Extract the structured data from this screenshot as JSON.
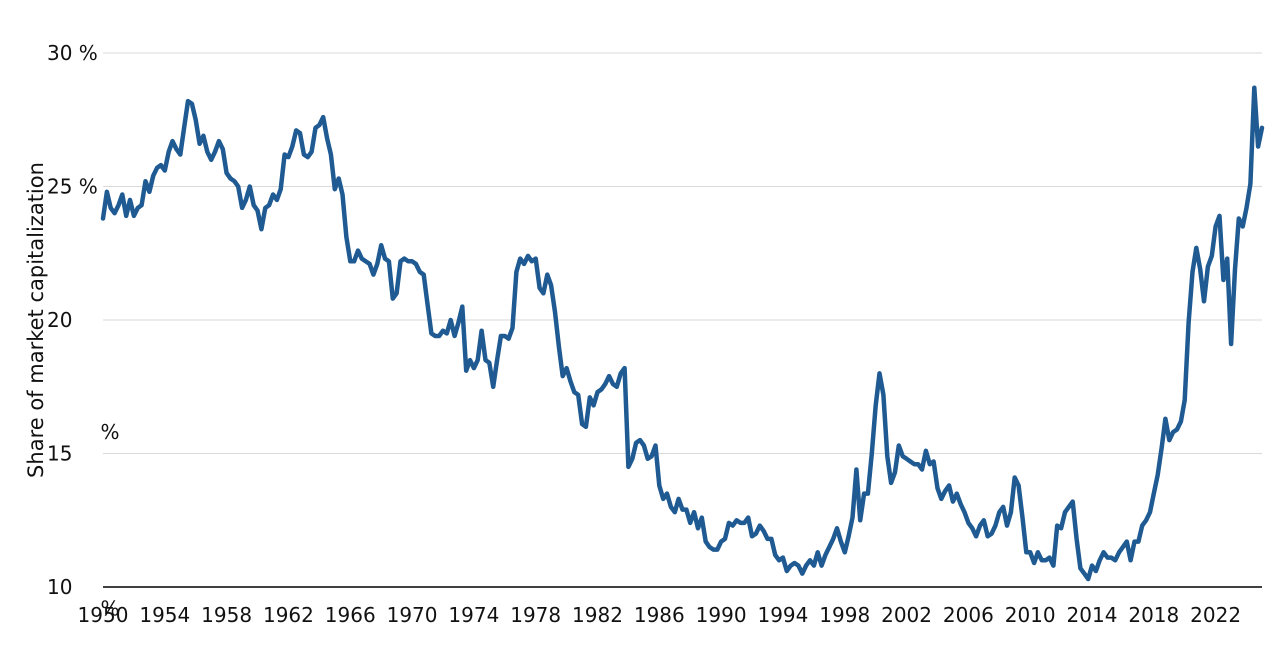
{
  "chart_data": {
    "type": "line",
    "title": "",
    "ylabel": "Share of market capitalization",
    "xlim": [
      1950,
      2025
    ],
    "ylim": [
      10,
      30
    ],
    "grid": "horizontal",
    "legend": "none",
    "x_ticks": [
      "1950",
      "1954",
      "1958",
      "1962",
      "1966",
      "1970",
      "1974",
      "1978",
      "1982",
      "1986",
      "1990",
      "1994",
      "1998",
      "2002",
      "2006",
      "2010",
      "2014",
      "2018",
      "2022"
    ],
    "y_ticks": [
      {
        "value": 30,
        "label": "30 %"
      },
      {
        "value": 25,
        "label": "25 %"
      },
      {
        "value": 20,
        "label": "20"
      },
      {
        "value": 15,
        "label": "15"
      },
      {
        "value": 10,
        "label": "10"
      }
    ],
    "stray_labels": [
      {
        "x": 1950.0,
        "y": 15.8,
        "text": "%"
      },
      {
        "x": 1950.0,
        "y": 9.2,
        "text": "%"
      }
    ],
    "colors": {
      "line": "#1f5b92"
    },
    "series": [
      {
        "points": [
          [
            1950.0,
            23.8
          ],
          [
            1950.25,
            24.8
          ],
          [
            1950.5,
            24.2
          ],
          [
            1950.75,
            24.0
          ],
          [
            1951.0,
            24.3
          ],
          [
            1951.25,
            24.7
          ],
          [
            1951.5,
            23.9
          ],
          [
            1951.75,
            24.5
          ],
          [
            1952.0,
            23.9
          ],
          [
            1952.25,
            24.2
          ],
          [
            1952.5,
            24.3
          ],
          [
            1952.75,
            25.2
          ],
          [
            1953.0,
            24.8
          ],
          [
            1953.25,
            25.4
          ],
          [
            1953.5,
            25.7
          ],
          [
            1953.75,
            25.8
          ],
          [
            1954.0,
            25.6
          ],
          [
            1954.25,
            26.3
          ],
          [
            1954.5,
            26.7
          ],
          [
            1954.75,
            26.4
          ],
          [
            1955.0,
            26.2
          ],
          [
            1955.25,
            27.2
          ],
          [
            1955.5,
            28.2
          ],
          [
            1955.75,
            28.1
          ],
          [
            1956.0,
            27.5
          ],
          [
            1956.25,
            26.6
          ],
          [
            1956.5,
            26.9
          ],
          [
            1956.75,
            26.3
          ],
          [
            1957.0,
            26.0
          ],
          [
            1957.25,
            26.3
          ],
          [
            1957.5,
            26.7
          ],
          [
            1957.75,
            26.4
          ],
          [
            1958.0,
            25.5
          ],
          [
            1958.25,
            25.3
          ],
          [
            1958.5,
            25.2
          ],
          [
            1958.75,
            25.0
          ],
          [
            1959.0,
            24.2
          ],
          [
            1959.25,
            24.5
          ],
          [
            1959.5,
            25.0
          ],
          [
            1959.75,
            24.3
          ],
          [
            1960.0,
            24.1
          ],
          [
            1960.25,
            23.4
          ],
          [
            1960.5,
            24.2
          ],
          [
            1960.75,
            24.3
          ],
          [
            1961.0,
            24.7
          ],
          [
            1961.25,
            24.5
          ],
          [
            1961.5,
            24.9
          ],
          [
            1961.75,
            26.2
          ],
          [
            1962.0,
            26.1
          ],
          [
            1962.25,
            26.5
          ],
          [
            1962.5,
            27.1
          ],
          [
            1962.75,
            27.0
          ],
          [
            1963.0,
            26.2
          ],
          [
            1963.25,
            26.1
          ],
          [
            1963.5,
            26.3
          ],
          [
            1963.75,
            27.2
          ],
          [
            1964.0,
            27.3
          ],
          [
            1964.25,
            27.6
          ],
          [
            1964.5,
            26.8
          ],
          [
            1964.75,
            26.2
          ],
          [
            1965.0,
            24.9
          ],
          [
            1965.25,
            25.3
          ],
          [
            1965.5,
            24.7
          ],
          [
            1965.75,
            23.1
          ],
          [
            1966.0,
            22.2
          ],
          [
            1966.25,
            22.2
          ],
          [
            1966.5,
            22.6
          ],
          [
            1966.75,
            22.3
          ],
          [
            1967.0,
            22.2
          ],
          [
            1967.25,
            22.1
          ],
          [
            1967.5,
            21.7
          ],
          [
            1967.75,
            22.1
          ],
          [
            1968.0,
            22.8
          ],
          [
            1968.25,
            22.3
          ],
          [
            1968.5,
            22.2
          ],
          [
            1968.75,
            20.8
          ],
          [
            1969.0,
            21.0
          ],
          [
            1969.25,
            22.2
          ],
          [
            1969.5,
            22.3
          ],
          [
            1969.75,
            22.2
          ],
          [
            1970.0,
            22.2
          ],
          [
            1970.25,
            22.1
          ],
          [
            1970.5,
            21.8
          ],
          [
            1970.75,
            21.7
          ],
          [
            1971.0,
            20.6
          ],
          [
            1971.25,
            19.5
          ],
          [
            1971.5,
            19.4
          ],
          [
            1971.75,
            19.4
          ],
          [
            1972.0,
            19.6
          ],
          [
            1972.25,
            19.5
          ],
          [
            1972.5,
            20.0
          ],
          [
            1972.75,
            19.4
          ],
          [
            1973.0,
            19.9
          ],
          [
            1973.25,
            20.5
          ],
          [
            1973.5,
            18.1
          ],
          [
            1973.75,
            18.5
          ],
          [
            1974.0,
            18.2
          ],
          [
            1974.25,
            18.5
          ],
          [
            1974.5,
            19.6
          ],
          [
            1974.75,
            18.5
          ],
          [
            1975.0,
            18.4
          ],
          [
            1975.25,
            17.5
          ],
          [
            1975.5,
            18.5
          ],
          [
            1975.75,
            19.4
          ],
          [
            1976.0,
            19.4
          ],
          [
            1976.25,
            19.3
          ],
          [
            1976.5,
            19.7
          ],
          [
            1976.75,
            21.8
          ],
          [
            1977.0,
            22.3
          ],
          [
            1977.25,
            22.1
          ],
          [
            1977.5,
            22.4
          ],
          [
            1977.75,
            22.2
          ],
          [
            1978.0,
            22.3
          ],
          [
            1978.25,
            21.2
          ],
          [
            1978.5,
            21.0
          ],
          [
            1978.75,
            21.7
          ],
          [
            1979.0,
            21.3
          ],
          [
            1979.25,
            20.3
          ],
          [
            1979.5,
            19.0
          ],
          [
            1979.75,
            17.9
          ],
          [
            1980.0,
            18.2
          ],
          [
            1980.25,
            17.7
          ],
          [
            1980.5,
            17.3
          ],
          [
            1980.75,
            17.2
          ],
          [
            1981.0,
            16.1
          ],
          [
            1981.25,
            16.0
          ],
          [
            1981.5,
            17.1
          ],
          [
            1981.75,
            16.8
          ],
          [
            1982.0,
            17.3
          ],
          [
            1982.25,
            17.4
          ],
          [
            1982.5,
            17.6
          ],
          [
            1982.75,
            17.9
          ],
          [
            1983.0,
            17.6
          ],
          [
            1983.25,
            17.5
          ],
          [
            1983.5,
            18.0
          ],
          [
            1983.75,
            18.2
          ],
          [
            1984.0,
            14.5
          ],
          [
            1984.25,
            14.8
          ],
          [
            1984.5,
            15.4
          ],
          [
            1984.75,
            15.5
          ],
          [
            1985.0,
            15.3
          ],
          [
            1985.25,
            14.8
          ],
          [
            1985.5,
            14.9
          ],
          [
            1985.75,
            15.3
          ],
          [
            1986.0,
            13.8
          ],
          [
            1986.25,
            13.3
          ],
          [
            1986.5,
            13.5
          ],
          [
            1986.75,
            13.0
          ],
          [
            1987.0,
            12.8
          ],
          [
            1987.25,
            13.3
          ],
          [
            1987.5,
            12.9
          ],
          [
            1987.75,
            12.9
          ],
          [
            1988.0,
            12.4
          ],
          [
            1988.25,
            12.8
          ],
          [
            1988.5,
            12.2
          ],
          [
            1988.75,
            12.6
          ],
          [
            1989.0,
            11.7
          ],
          [
            1989.25,
            11.5
          ],
          [
            1989.5,
            11.4
          ],
          [
            1989.75,
            11.4
          ],
          [
            1990.0,
            11.7
          ],
          [
            1990.25,
            11.8
          ],
          [
            1990.5,
            12.4
          ],
          [
            1990.75,
            12.3
          ],
          [
            1991.0,
            12.5
          ],
          [
            1991.25,
            12.4
          ],
          [
            1991.5,
            12.4
          ],
          [
            1991.75,
            12.6
          ],
          [
            1992.0,
            11.9
          ],
          [
            1992.25,
            12.0
          ],
          [
            1992.5,
            12.3
          ],
          [
            1992.75,
            12.1
          ],
          [
            1993.0,
            11.8
          ],
          [
            1993.25,
            11.8
          ],
          [
            1993.5,
            11.2
          ],
          [
            1993.75,
            11.0
          ],
          [
            1994.0,
            11.1
          ],
          [
            1994.25,
            10.6
          ],
          [
            1994.5,
            10.8
          ],
          [
            1994.75,
            10.9
          ],
          [
            1995.0,
            10.8
          ],
          [
            1995.25,
            10.5
          ],
          [
            1995.5,
            10.8
          ],
          [
            1995.75,
            11.0
          ],
          [
            1996.0,
            10.8
          ],
          [
            1996.25,
            11.3
          ],
          [
            1996.5,
            10.8
          ],
          [
            1996.75,
            11.2
          ],
          [
            1997.0,
            11.5
          ],
          [
            1997.25,
            11.8
          ],
          [
            1997.5,
            12.2
          ],
          [
            1997.75,
            11.7
          ],
          [
            1998.0,
            11.3
          ],
          [
            1998.25,
            11.9
          ],
          [
            1998.5,
            12.6
          ],
          [
            1998.75,
            14.4
          ],
          [
            1999.0,
            12.5
          ],
          [
            1999.25,
            13.5
          ],
          [
            1999.5,
            13.5
          ],
          [
            1999.75,
            15.0
          ],
          [
            2000.0,
            16.8
          ],
          [
            2000.25,
            18.0
          ],
          [
            2000.5,
            17.2
          ],
          [
            2000.75,
            14.9
          ],
          [
            2001.0,
            13.9
          ],
          [
            2001.25,
            14.3
          ],
          [
            2001.5,
            15.3
          ],
          [
            2001.75,
            14.9
          ],
          [
            2002.0,
            14.8
          ],
          [
            2002.25,
            14.7
          ],
          [
            2002.5,
            14.6
          ],
          [
            2002.75,
            14.6
          ],
          [
            2003.0,
            14.4
          ],
          [
            2003.25,
            15.1
          ],
          [
            2003.5,
            14.6
          ],
          [
            2003.75,
            14.7
          ],
          [
            2004.0,
            13.7
          ],
          [
            2004.25,
            13.3
          ],
          [
            2004.5,
            13.6
          ],
          [
            2004.75,
            13.8
          ],
          [
            2005.0,
            13.2
          ],
          [
            2005.25,
            13.5
          ],
          [
            2005.5,
            13.1
          ],
          [
            2005.75,
            12.8
          ],
          [
            2006.0,
            12.4
          ],
          [
            2006.25,
            12.2
          ],
          [
            2006.5,
            11.9
          ],
          [
            2006.75,
            12.3
          ],
          [
            2007.0,
            12.5
          ],
          [
            2007.25,
            11.9
          ],
          [
            2007.5,
            12.0
          ],
          [
            2007.75,
            12.3
          ],
          [
            2008.0,
            12.8
          ],
          [
            2008.25,
            13.0
          ],
          [
            2008.5,
            12.3
          ],
          [
            2008.75,
            12.8
          ],
          [
            2009.0,
            14.1
          ],
          [
            2009.25,
            13.8
          ],
          [
            2009.5,
            12.6
          ],
          [
            2009.75,
            11.3
          ],
          [
            2010.0,
            11.3
          ],
          [
            2010.25,
            10.9
          ],
          [
            2010.5,
            11.3
          ],
          [
            2010.75,
            11.0
          ],
          [
            2011.0,
            11.0
          ],
          [
            2011.25,
            11.1
          ],
          [
            2011.5,
            10.8
          ],
          [
            2011.75,
            12.3
          ],
          [
            2012.0,
            12.2
          ],
          [
            2012.25,
            12.8
          ],
          [
            2012.5,
            13.0
          ],
          [
            2012.75,
            13.2
          ],
          [
            2013.0,
            11.8
          ],
          [
            2013.25,
            10.7
          ],
          [
            2013.5,
            10.5
          ],
          [
            2013.75,
            10.3
          ],
          [
            2014.0,
            10.8
          ],
          [
            2014.25,
            10.6
          ],
          [
            2014.5,
            11.0
          ],
          [
            2014.75,
            11.3
          ],
          [
            2015.0,
            11.1
          ],
          [
            2015.25,
            11.1
          ],
          [
            2015.5,
            11.0
          ],
          [
            2015.75,
            11.3
          ],
          [
            2016.0,
            11.5
          ],
          [
            2016.25,
            11.7
          ],
          [
            2016.5,
            11.0
          ],
          [
            2016.75,
            11.7
          ],
          [
            2017.0,
            11.7
          ],
          [
            2017.25,
            12.3
          ],
          [
            2017.5,
            12.5
          ],
          [
            2017.75,
            12.8
          ],
          [
            2018.0,
            13.5
          ],
          [
            2018.25,
            14.2
          ],
          [
            2018.5,
            15.2
          ],
          [
            2018.75,
            16.3
          ],
          [
            2019.0,
            15.5
          ],
          [
            2019.25,
            15.8
          ],
          [
            2019.5,
            15.9
          ],
          [
            2019.75,
            16.2
          ],
          [
            2020.0,
            17.0
          ],
          [
            2020.25,
            19.9
          ],
          [
            2020.5,
            21.8
          ],
          [
            2020.75,
            22.7
          ],
          [
            2021.0,
            21.9
          ],
          [
            2021.25,
            20.7
          ],
          [
            2021.5,
            22.0
          ],
          [
            2021.75,
            22.4
          ],
          [
            2022.0,
            23.5
          ],
          [
            2022.25,
            23.9
          ],
          [
            2022.5,
            21.5
          ],
          [
            2022.75,
            22.3
          ],
          [
            2023.0,
            19.1
          ],
          [
            2023.25,
            21.9
          ],
          [
            2023.5,
            23.8
          ],
          [
            2023.75,
            23.5
          ],
          [
            2024.0,
            24.2
          ],
          [
            2024.25,
            25.1
          ],
          [
            2024.5,
            28.7
          ],
          [
            2024.75,
            26.5
          ],
          [
            2025.0,
            27.2
          ]
        ]
      }
    ]
  }
}
